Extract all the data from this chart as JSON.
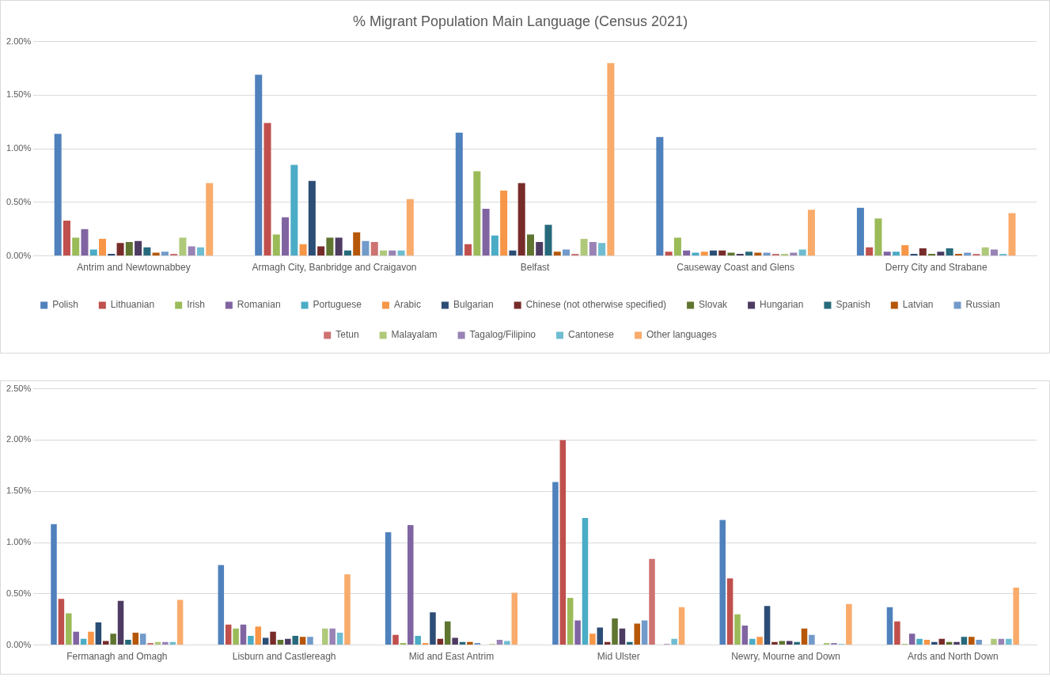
{
  "chart_data": [
    {
      "type": "bar",
      "title": "% Migrant Population Main Language (Census 2021)",
      "categories": [
        "Antrim and Newtownabbey",
        "Armagh City, Banbridge and Craigavon",
        "Belfast",
        "Causeway Coast and Glens",
        "Derry City and Strabane"
      ],
      "ylim": [
        0,
        2
      ],
      "yticks": [
        {
          "value": 0,
          "label": "0.00%"
        },
        {
          "value": 0.5,
          "label": "0.50%"
        },
        {
          "value": 1,
          "label": "1.00%"
        },
        {
          "value": 1.5,
          "label": "1.50%"
        },
        {
          "value": 2,
          "label": "2.00%"
        }
      ],
      "grid": "y",
      "legend": "bottom",
      "series": [
        {
          "name": "Polish",
          "color": "#4f81bd",
          "values": [
            1.14,
            1.69,
            1.15,
            1.11,
            0.45
          ]
        },
        {
          "name": "Lithuanian",
          "color": "#c0504d",
          "values": [
            0.33,
            1.24,
            0.11,
            0.04,
            0.08
          ]
        },
        {
          "name": "Irish",
          "color": "#9bbb59",
          "values": [
            0.17,
            0.2,
            0.79,
            0.17,
            0.35
          ]
        },
        {
          "name": "Romanian",
          "color": "#8064a2",
          "values": [
            0.25,
            0.36,
            0.44,
            0.05,
            0.04
          ]
        },
        {
          "name": "Portuguese",
          "color": "#4bacc6",
          "values": [
            0.06,
            0.85,
            0.19,
            0.03,
            0.04
          ]
        },
        {
          "name": "Arabic",
          "color": "#f79646",
          "values": [
            0.16,
            0.11,
            0.61,
            0.04,
            0.1
          ]
        },
        {
          "name": "Bulgarian",
          "color": "#2c4d75",
          "values": [
            0.02,
            0.7,
            0.05,
            0.05,
            0.02
          ]
        },
        {
          "name": "Chinese (not otherwise specified)",
          "color": "#772c2a",
          "values": [
            0.12,
            0.09,
            0.68,
            0.05,
            0.07
          ]
        },
        {
          "name": "Slovak",
          "color": "#5f7530",
          "values": [
            0.13,
            0.17,
            0.2,
            0.03,
            0.02
          ]
        },
        {
          "name": "Hungarian",
          "color": "#4d3b62",
          "values": [
            0.14,
            0.17,
            0.13,
            0.02,
            0.04
          ]
        },
        {
          "name": "Spanish",
          "color": "#276a7c",
          "values": [
            0.08,
            0.05,
            0.29,
            0.04,
            0.07
          ]
        },
        {
          "name": "Latvian",
          "color": "#b65708",
          "values": [
            0.03,
            0.22,
            0.04,
            0.03,
            0.02
          ]
        },
        {
          "name": "Russian",
          "color": "#729aca",
          "values": [
            0.04,
            0.14,
            0.06,
            0.03,
            0.03
          ]
        },
        {
          "name": "Tetun",
          "color": "#cd7371",
          "values": [
            0.02,
            0.13,
            0.02,
            0.02,
            0.02
          ]
        },
        {
          "name": "Malayalam",
          "color": "#afc97a",
          "values": [
            0.17,
            0.05,
            0.16,
            0.02,
            0.08
          ]
        },
        {
          "name": "Tagalog/Filipino",
          "color": "#9983b5",
          "values": [
            0.09,
            0.05,
            0.13,
            0.03,
            0.06
          ]
        },
        {
          "name": "Cantonese",
          "color": "#6fbdd1",
          "values": [
            0.08,
            0.05,
            0.12,
            0.06,
            0.02
          ]
        },
        {
          "name": "Other languages",
          "color": "#f9ab6b",
          "values": [
            0.68,
            0.53,
            1.8,
            0.43,
            0.4
          ]
        }
      ]
    },
    {
      "type": "bar",
      "categories": [
        "Fermanagh and Omagh",
        "Lisburn and Castlereagh",
        "Mid and East Antrim",
        "Mid Ulster",
        "Newry, Mourne and Down",
        "Ards and North Down"
      ],
      "ylim": [
        0,
        2.5
      ],
      "yticks": [
        {
          "value": 0,
          "label": "0.00%"
        },
        {
          "value": 0.5,
          "label": "0.50%"
        },
        {
          "value": 1,
          "label": "1.00%"
        },
        {
          "value": 1.5,
          "label": "1.50%"
        },
        {
          "value": 2,
          "label": "2.00%"
        },
        {
          "value": 2.5,
          "label": "2.50%"
        }
      ],
      "grid": "y",
      "series": [
        {
          "color": "#4f81bd",
          "values": [
            1.18,
            0.78,
            1.1,
            1.59,
            1.22,
            0.37
          ]
        },
        {
          "color": "#c0504d",
          "values": [
            0.45,
            0.2,
            0.1,
            2.0,
            0.65,
            0.23
          ]
        },
        {
          "color": "#9bbb59",
          "values": [
            0.31,
            0.16,
            0.02,
            0.46,
            0.3,
            0.01
          ]
        },
        {
          "color": "#8064a2",
          "values": [
            0.13,
            0.2,
            1.17,
            0.24,
            0.19,
            0.11
          ]
        },
        {
          "color": "#4bacc6",
          "values": [
            0.06,
            0.09,
            0.09,
            1.24,
            0.06,
            0.06
          ]
        },
        {
          "color": "#f79646",
          "values": [
            0.13,
            0.18,
            0.02,
            0.11,
            0.08,
            0.05
          ]
        },
        {
          "color": "#2c4d75",
          "values": [
            0.22,
            0.07,
            0.32,
            0.17,
            0.38,
            0.03
          ]
        },
        {
          "color": "#772c2a",
          "values": [
            0.04,
            0.13,
            0.06,
            0.03,
            0.03,
            0.06
          ]
        },
        {
          "color": "#5f7530",
          "values": [
            0.11,
            0.05,
            0.23,
            0.26,
            0.04,
            0.03
          ]
        },
        {
          "color": "#4d3b62",
          "values": [
            0.43,
            0.06,
            0.07,
            0.16,
            0.04,
            0.03
          ]
        },
        {
          "color": "#276a7c",
          "values": [
            0.05,
            0.09,
            0.03,
            0.03,
            0.03,
            0.08
          ]
        },
        {
          "color": "#b65708",
          "values": [
            0.12,
            0.08,
            0.03,
            0.21,
            0.16,
            0.08
          ]
        },
        {
          "color": "#729aca",
          "values": [
            0.11,
            0.08,
            0.02,
            0.24,
            0.1,
            0.05
          ]
        },
        {
          "color": "#cd7371",
          "values": [
            0.02,
            0,
            0,
            0.84,
            0,
            0
          ]
        },
        {
          "color": "#afc97a",
          "values": [
            0.03,
            0.16,
            0.01,
            0,
            0.02,
            0.06
          ]
        },
        {
          "color": "#9983b5",
          "values": [
            0.03,
            0.16,
            0.05,
            0.01,
            0.02,
            0.06
          ]
        },
        {
          "color": "#6fbdd1",
          "values": [
            0.03,
            0.12,
            0.04,
            0.06,
            0.01,
            0.06
          ]
        },
        {
          "color": "#f9ab6b",
          "values": [
            0.44,
            0.69,
            0.51,
            0.37,
            0.4,
            0.56
          ]
        }
      ]
    }
  ]
}
